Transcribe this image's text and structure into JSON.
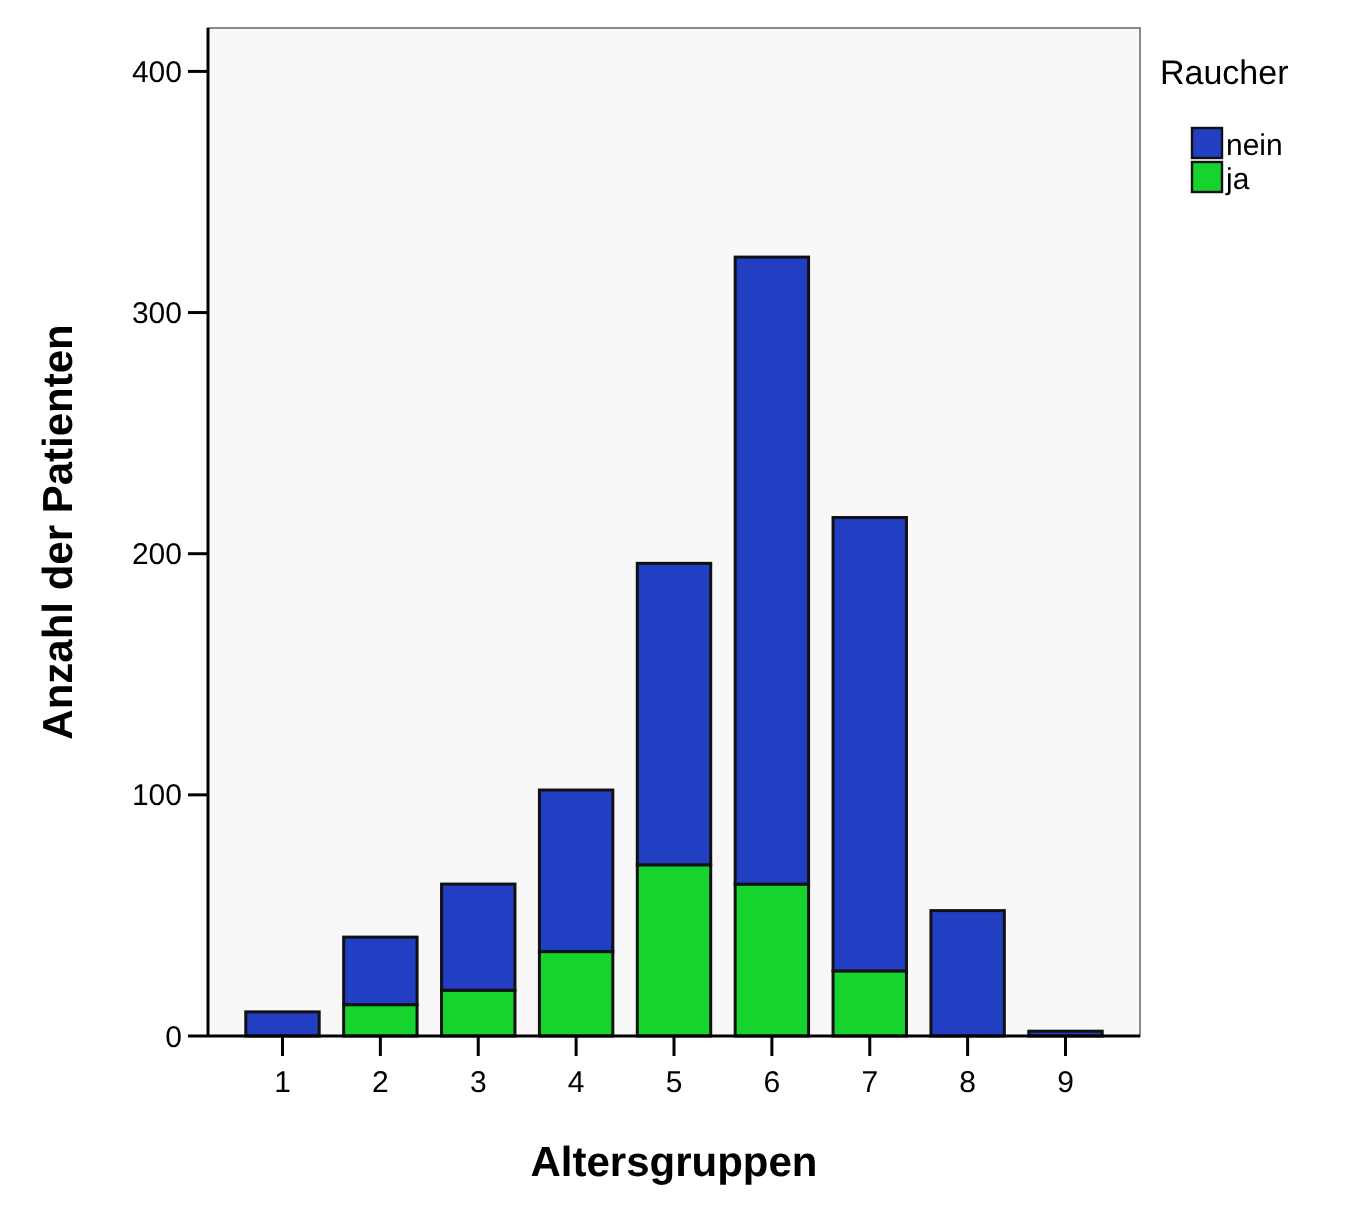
{
  "chart_data": {
    "type": "bar",
    "stacked": true,
    "xlabel": "Altersgruppen",
    "ylabel": "Anzahl der Patienten",
    "legend_title": "Raucher",
    "legend": "top right",
    "categories": [
      "1",
      "2",
      "3",
      "4",
      "5",
      "6",
      "7",
      "8",
      "9"
    ],
    "series": [
      {
        "name": "ja",
        "color": "#16d32e",
        "values": [
          0,
          13,
          19,
          35,
          71,
          63,
          27,
          null,
          null
        ]
      },
      {
        "name": "nein",
        "color": "#223fc4",
        "values": [
          10,
          28,
          44,
          67,
          125,
          260,
          188,
          52,
          2
        ]
      }
    ],
    "ylim": [
      0,
      418
    ],
    "yticks": [
      0,
      100,
      200,
      300,
      400
    ],
    "grid": false
  }
}
